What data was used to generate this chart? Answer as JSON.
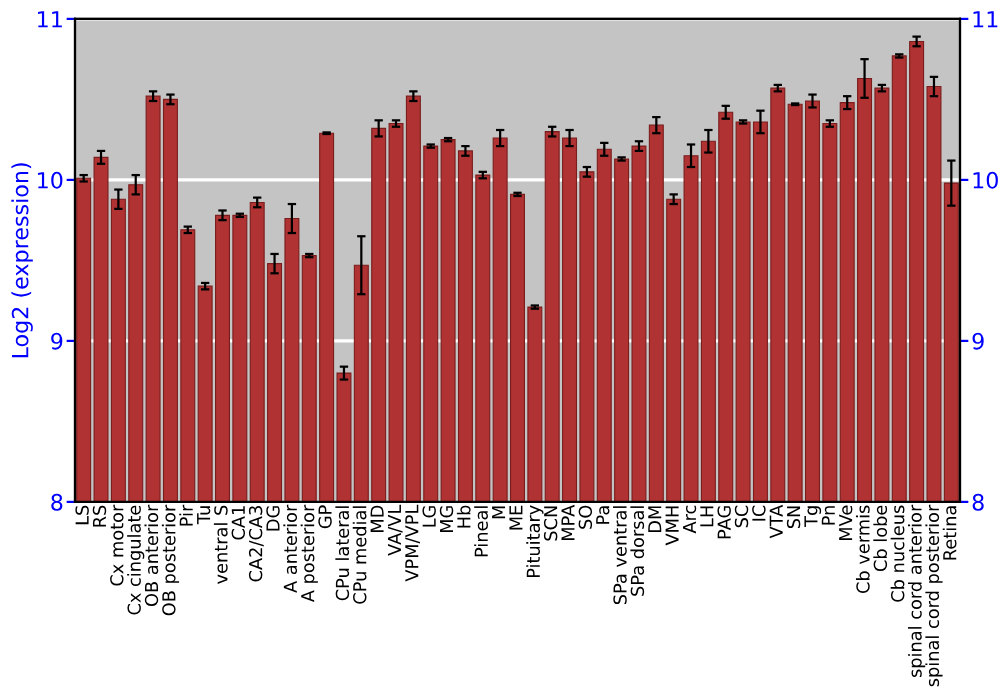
{
  "chart_data": {
    "type": "bar",
    "ylabel": "Log2 (expression)",
    "categories": [
      "LS",
      "RS",
      "Cx motor",
      "Cx cingulate",
      "OB anterior",
      "OB posterior",
      "Pir",
      "Tu",
      "ventral S",
      "CA1",
      "CA2/CA3",
      "DG",
      "A anterior",
      "A posterior",
      "GP",
      "CPu lateral",
      "CPu medial",
      "MD",
      "VA/VL",
      "VPM/VPL",
      "LG",
      "MG",
      "Hb",
      "Pineal",
      "M",
      "ME",
      "Pituitary",
      "SCN",
      "MPA",
      "SO",
      "Pa",
      "SPa ventral",
      "SPa dorsal",
      "DM",
      "VMH",
      "Arc",
      "LH",
      "PAG",
      "SC",
      "IC",
      "VTA",
      "SN",
      "Tg",
      "Pn",
      "MVe",
      "Cb vermis",
      "Cb lobe",
      "Cb nucleus",
      "spinal cord anterior",
      "spinal cord posterior",
      "Retina"
    ],
    "values": [
      10.01,
      10.14,
      9.88,
      9.97,
      10.52,
      10.5,
      9.69,
      9.34,
      9.78,
      9.78,
      9.86,
      9.48,
      9.76,
      9.53,
      10.29,
      8.8,
      9.47,
      10.32,
      10.35,
      10.52,
      10.21,
      10.25,
      10.18,
      10.03,
      10.26,
      9.91,
      9.21,
      10.3,
      10.26,
      10.05,
      10.19,
      10.13,
      10.21,
      10.34,
      9.88,
      10.15,
      10.24,
      10.42,
      10.36,
      10.36,
      10.57,
      10.47,
      10.49,
      10.35,
      10.48,
      10.63,
      10.57,
      10.77,
      10.86,
      10.58,
      9.98
    ],
    "errors": [
      0.02,
      0.04,
      0.06,
      0.06,
      0.03,
      0.03,
      0.02,
      0.02,
      0.03,
      0.01,
      0.03,
      0.06,
      0.09,
      0.01,
      0.005,
      0.04,
      0.18,
      0.05,
      0.02,
      0.03,
      0.01,
      0.01,
      0.03,
      0.02,
      0.05,
      0.01,
      0.01,
      0.03,
      0.05,
      0.03,
      0.04,
      0.01,
      0.03,
      0.05,
      0.03,
      0.07,
      0.07,
      0.04,
      0.01,
      0.07,
      0.02,
      0.005,
      0.04,
      0.02,
      0.04,
      0.12,
      0.02,
      0.01,
      0.03,
      0.06,
      0.14
    ],
    "color": "#b03232",
    "ylim": [
      8,
      11
    ],
    "yticks": [
      8,
      9,
      10,
      11
    ],
    "y2lim": [
      8,
      11
    ],
    "y2ticks": [
      8,
      9,
      10,
      11
    ],
    "grid": "y"
  }
}
